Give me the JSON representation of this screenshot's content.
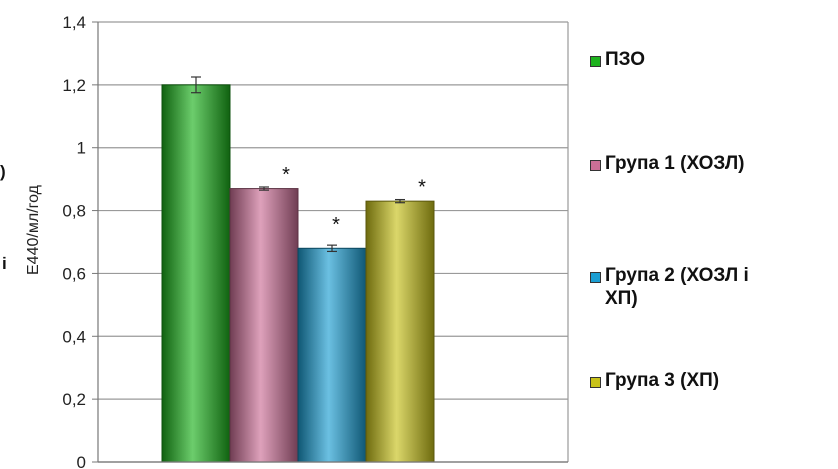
{
  "chart_data": {
    "type": "bar",
    "ylabel": "Е440/мл/год",
    "ylim": [
      0,
      1.4
    ],
    "yticks": [
      "0",
      "0,2",
      "0,4",
      "0,6",
      "0,8",
      "1",
      "1,2",
      "1,4"
    ],
    "grid": true,
    "legend_position": "right",
    "series": [
      {
        "name": "ПЗО",
        "value": 1.2,
        "error": 0.025,
        "color": "#1db21d",
        "marker": ""
      },
      {
        "name": "Група 1 (ХОЗЛ)",
        "value": 0.87,
        "error": 0.005,
        "color": "#cc6f96",
        "marker": "*"
      },
      {
        "name": "Група 2 (ХОЗЛ і ХП)",
        "value": 0.68,
        "error": 0.01,
        "color": "#1b9ed2",
        "marker": "*"
      },
      {
        "name": "Група 3 (ХП)",
        "value": 0.83,
        "error": 0.005,
        "color": "#c8c21a",
        "marker": "*"
      }
    ]
  },
  "legend": {
    "items": [
      {
        "lines": [
          "ПЗО"
        ],
        "color": "#1db21d"
      },
      {
        "lines": [
          "Група 1 (ХОЗЛ)"
        ],
        "color": "#cc6f96"
      },
      {
        "lines": [
          "Група 2 (ХОЗЛ і",
          "ХП)"
        ],
        "color": "#1b9ed2"
      },
      {
        "lines": [
          "Група 3 (ХП)"
        ],
        "color": "#c8c21a"
      }
    ]
  },
  "edge_text": {
    "top": ")",
    "middle": "і"
  }
}
